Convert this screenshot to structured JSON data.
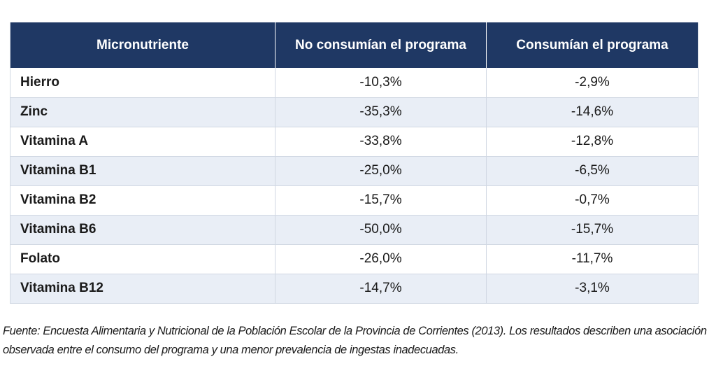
{
  "table": {
    "headers": [
      "Micronutriente",
      "No consumían el programa",
      "Consumían el programa"
    ],
    "rows": [
      {
        "nutrient": "Hierro",
        "no_consumian": "-10,3%",
        "consumian": "-2,9%"
      },
      {
        "nutrient": "Zinc",
        "no_consumian": "-35,3%",
        "consumian": "-14,6%"
      },
      {
        "nutrient": "Vitamina A",
        "no_consumian": "-33,8%",
        "consumian": "-12,8%"
      },
      {
        "nutrient": "Vitamina B1",
        "no_consumian": "-25,0%",
        "consumian": "-6,5%"
      },
      {
        "nutrient": "Vitamina B2",
        "no_consumian": "-15,7%",
        "consumian": "-0,7%"
      },
      {
        "nutrient": "Vitamina B6",
        "no_consumian": "-50,0%",
        "consumian": "-15,7%"
      },
      {
        "nutrient": "Folato",
        "no_consumian": "-26,0%",
        "consumian": "-11,7%"
      },
      {
        "nutrient": "Vitamina B12",
        "no_consumian": "-14,7%",
        "consumian": "-3,1%"
      }
    ]
  },
  "source_note": "Fuente: Encuesta Alimentaria y Nutricional de la Población Escolar de la Provincia de Corrientes (2013). Los resultados describen una asociación observada entre el consumo del programa y una menor prevalencia de ingestas inadecuadas.",
  "colors": {
    "header_bg": "#1f3864",
    "row_alt_bg": "#e9eef6",
    "border": "#d0d7e2"
  }
}
